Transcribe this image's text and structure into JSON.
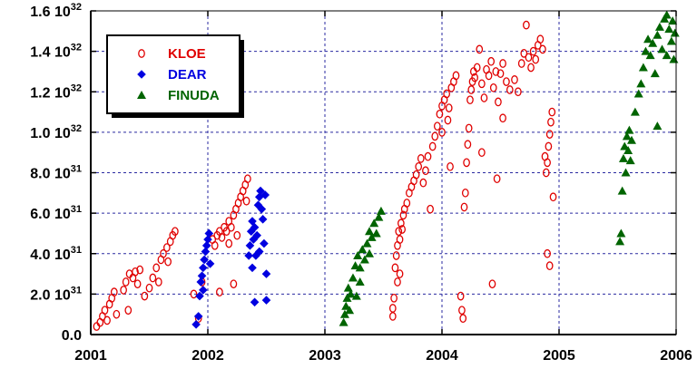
{
  "chart_data": {
    "type": "scatter",
    "title": "",
    "xlabel": "",
    "ylabel": "",
    "xlim": [
      2001,
      2006
    ],
    "ylim": [
      0,
      1.6e+32
    ],
    "grid": "dashed blue",
    "legend_position": "top-left",
    "x_ticks": [
      {
        "value": 2001,
        "label": "2001"
      },
      {
        "value": 2002,
        "label": "2002"
      },
      {
        "value": 2003,
        "label": "2003"
      },
      {
        "value": 2004,
        "label": "2004"
      },
      {
        "value": 2005,
        "label": "2005"
      },
      {
        "value": 2006,
        "label": "2006"
      }
    ],
    "y_ticks": [
      {
        "value": 0,
        "mantissa": "0.0",
        "exp": ""
      },
      {
        "value": 2e+31,
        "mantissa": "2.0 10",
        "exp": "31"
      },
      {
        "value": 4e+31,
        "mantissa": "4.0 10",
        "exp": "31"
      },
      {
        "value": 6e+31,
        "mantissa": "6.0 10",
        "exp": "31"
      },
      {
        "value": 8e+31,
        "mantissa": "8.0 10",
        "exp": "31"
      },
      {
        "value": 1e+32,
        "mantissa": "1.0 10",
        "exp": "32"
      },
      {
        "value": 1.2e+32,
        "mantissa": "1.2 10",
        "exp": "32"
      },
      {
        "value": 1.4e+32,
        "mantissa": "1.4 10",
        "exp": "32"
      },
      {
        "value": 1.6e+32,
        "mantissa": "1.6 10",
        "exp": "32"
      }
    ],
    "series": [
      {
        "name": "KLOE",
        "marker": "open-circle",
        "color": "#e00000",
        "points": [
          [
            2001.05,
            4e+30
          ],
          [
            2001.08,
            6e+30
          ],
          [
            2001.1,
            9e+30
          ],
          [
            2001.12,
            1.2e+31
          ],
          [
            2001.14,
            7e+30
          ],
          [
            2001.16,
            1.5e+31
          ],
          [
            2001.18,
            1.8e+31
          ],
          [
            2001.2,
            2.1e+31
          ],
          [
            2001.22,
            1e+31
          ],
          [
            2001.28,
            2.2e+31
          ],
          [
            2001.3,
            2.6e+31
          ],
          [
            2001.33,
            3e+31
          ],
          [
            2001.36,
            2.8e+31
          ],
          [
            2001.38,
            3.1e+31
          ],
          [
            2001.4,
            2.5e+31
          ],
          [
            2001.42,
            3.2e+31
          ],
          [
            2001.32,
            1.2e+31
          ],
          [
            2001.46,
            1.9e+31
          ],
          [
            2001.5,
            2.3e+31
          ],
          [
            2001.53,
            2.8e+31
          ],
          [
            2001.56,
            3.3e+31
          ],
          [
            2001.6,
            3.7e+31
          ],
          [
            2001.62,
            4e+31
          ],
          [
            2001.65,
            4.3e+31
          ],
          [
            2001.68,
            4.6e+31
          ],
          [
            2001.7,
            4.9e+31
          ],
          [
            2001.72,
            5.1e+31
          ],
          [
            2001.58,
            2.6e+31
          ],
          [
            2001.66,
            3.6e+31
          ],
          [
            2001.88,
            2e+31
          ],
          [
            2001.92,
            8e+30
          ],
          [
            2001.95,
            2.6e+31
          ],
          [
            2002.04,
            4.7e+31
          ],
          [
            2002.06,
            4.4e+31
          ],
          [
            2002.08,
            4.9e+31
          ],
          [
            2002.1,
            5.1e+31
          ],
          [
            2002.12,
            4.8e+31
          ],
          [
            2002.14,
            5.3e+31
          ],
          [
            2002.16,
            5.1e+31
          ],
          [
            2002.18,
            5.6e+31
          ],
          [
            2002.2,
            5.3e+31
          ],
          [
            2002.22,
            5.9e+31
          ],
          [
            2002.24,
            6.2e+31
          ],
          [
            2002.26,
            6.5e+31
          ],
          [
            2002.28,
            6.8e+31
          ],
          [
            2002.3,
            7.1e+31
          ],
          [
            2002.32,
            7.4e+31
          ],
          [
            2002.34,
            7.7e+31
          ],
          [
            2002.33,
            6.6e+31
          ],
          [
            2002.25,
            4.9e+31
          ],
          [
            2002.18,
            4.5e+31
          ],
          [
            2002.22,
            2.5e+31
          ],
          [
            2002.1,
            2.1e+31
          ],
          [
            2003.58,
            1.3e+31
          ],
          [
            2003.59,
            1.8e+31
          ],
          [
            2003.6,
            3.3e+31
          ],
          [
            2003.61,
            3.9e+31
          ],
          [
            2003.62,
            4.4e+31
          ],
          [
            2003.63,
            5.1e+31
          ],
          [
            2003.64,
            4.7e+31
          ],
          [
            2003.65,
            5.5e+31
          ],
          [
            2003.66,
            5.2e+31
          ],
          [
            2003.67,
            5.9e+31
          ],
          [
            2003.68,
            6.2e+31
          ],
          [
            2003.7,
            6.5e+31
          ],
          [
            2003.72,
            7e+31
          ],
          [
            2003.74,
            7.3e+31
          ],
          [
            2003.76,
            7.6e+31
          ],
          [
            2003.78,
            7.9e+31
          ],
          [
            2003.8,
            8.3e+31
          ],
          [
            2003.82,
            8.7e+31
          ],
          [
            2003.84,
            7.5e+31
          ],
          [
            2003.86,
            8.1e+31
          ],
          [
            2003.88,
            8.8e+31
          ],
          [
            2003.9,
            6.2e+31
          ],
          [
            2003.58,
            9e+30
          ],
          [
            2003.62,
            2.6e+31
          ],
          [
            2003.64,
            3e+31
          ],
          [
            2003.92,
            9.3e+31
          ],
          [
            2003.94,
            9.8e+31
          ],
          [
            2003.96,
            1.03e+32
          ],
          [
            2003.98,
            1.09e+32
          ],
          [
            2004.0,
            1.13e+32
          ],
          [
            2004.02,
            1.16e+32
          ],
          [
            2004.04,
            1.19e+32
          ],
          [
            2004.06,
            1.12e+32
          ],
          [
            2004.08,
            1.22e+32
          ],
          [
            2004.1,
            1.25e+32
          ],
          [
            2004.12,
            1.28e+32
          ],
          [
            2004.0,
            1e+32
          ],
          [
            2004.05,
            1.06e+32
          ],
          [
            2004.07,
            8.3e+31
          ],
          [
            2004.16,
            1.9e+31
          ],
          [
            2004.17,
            1.2e+31
          ],
          [
            2004.18,
            8e+30
          ],
          [
            2004.19,
            6.3e+31
          ],
          [
            2004.2,
            7e+31
          ],
          [
            2004.21,
            8.5e+31
          ],
          [
            2004.22,
            9.4e+31
          ],
          [
            2004.23,
            1.02e+32
          ],
          [
            2004.24,
            1.16e+32
          ],
          [
            2004.25,
            1.21e+32
          ],
          [
            2004.26,
            1.25e+32
          ],
          [
            2004.27,
            1.3e+32
          ],
          [
            2004.28,
            1.27e+32
          ],
          [
            2004.3,
            1.32e+32
          ],
          [
            2004.32,
            1.41e+32
          ],
          [
            2004.34,
            1.24e+32
          ],
          [
            2004.36,
            1.17e+32
          ],
          [
            2004.38,
            1.31e+32
          ],
          [
            2004.4,
            1.28e+32
          ],
          [
            2004.42,
            1.35e+32
          ],
          [
            2004.44,
            1.22e+32
          ],
          [
            2004.46,
            1.3e+32
          ],
          [
            2004.48,
            1.15e+32
          ],
          [
            2004.5,
            1.29e+32
          ],
          [
            2004.52,
            1.34e+32
          ],
          [
            2004.34,
            9e+31
          ],
          [
            2004.43,
            2.5e+31
          ],
          [
            2004.47,
            7.7e+31
          ],
          [
            2004.52,
            1.07e+32
          ],
          [
            2004.55,
            1.25e+32
          ],
          [
            2004.58,
            1.21e+32
          ],
          [
            2004.62,
            1.26e+32
          ],
          [
            2004.65,
            1.2e+32
          ],
          [
            2004.68,
            1.34e+32
          ],
          [
            2004.7,
            1.39e+32
          ],
          [
            2004.72,
            1.53e+32
          ],
          [
            2004.74,
            1.37e+32
          ],
          [
            2004.76,
            1.32e+32
          ],
          [
            2004.78,
            1.4e+32
          ],
          [
            2004.8,
            1.36e+32
          ],
          [
            2004.82,
            1.43e+32
          ],
          [
            2004.84,
            1.46e+32
          ],
          [
            2004.86,
            1.41e+32
          ],
          [
            2004.88,
            8.8e+31
          ],
          [
            2004.89,
            8e+31
          ],
          [
            2004.9,
            8.5e+31
          ],
          [
            2004.91,
            9.3e+31
          ],
          [
            2004.92,
            9.9e+31
          ],
          [
            2004.93,
            1.05e+32
          ],
          [
            2004.94,
            1.1e+32
          ],
          [
            2004.95,
            6.8e+31
          ],
          [
            2004.9,
            4e+31
          ],
          [
            2004.92,
            3.4e+31
          ]
        ]
      },
      {
        "name": "DEAR",
        "marker": "diamond",
        "color": "#0000e0",
        "points": [
          [
            2001.9,
            5e+30
          ],
          [
            2001.92,
            9e+30
          ],
          [
            2001.93,
            1.9e+31
          ],
          [
            2001.94,
            2.6e+31
          ],
          [
            2001.95,
            2.9e+31
          ],
          [
            2001.96,
            3.3e+31
          ],
          [
            2001.97,
            3.7e+31
          ],
          [
            2001.98,
            4.1e+31
          ],
          [
            2001.99,
            4.4e+31
          ],
          [
            2002.0,
            4.7e+31
          ],
          [
            2002.01,
            5e+31
          ],
          [
            2002.02,
            3.5e+31
          ],
          [
            2001.96,
            2.2e+31
          ],
          [
            2002.35,
            3.9e+31
          ],
          [
            2002.36,
            4.4e+31
          ],
          [
            2002.37,
            5.1e+31
          ],
          [
            2002.38,
            5.6e+31
          ],
          [
            2002.39,
            4.7e+31
          ],
          [
            2002.4,
            5.3e+31
          ],
          [
            2002.41,
            3.9e+31
          ],
          [
            2002.42,
            4.9e+31
          ],
          [
            2002.43,
            6.4e+31
          ],
          [
            2002.44,
            6.8e+31
          ],
          [
            2002.45,
            7.1e+31
          ],
          [
            2002.46,
            6.2e+31
          ],
          [
            2002.47,
            5.7e+31
          ],
          [
            2002.48,
            4.5e+31
          ],
          [
            2002.49,
            6.9e+31
          ],
          [
            2002.5,
            3e+31
          ],
          [
            2002.4,
            1.6e+31
          ],
          [
            2002.5,
            1.7e+31
          ],
          [
            2002.38,
            3.3e+31
          ],
          [
            2002.44,
            4.1e+31
          ]
        ]
      },
      {
        "name": "FINUDA",
        "marker": "triangle",
        "color": "#006400",
        "points": [
          [
            2003.16,
            6e+30
          ],
          [
            2003.17,
            1e+31
          ],
          [
            2003.18,
            1.4e+31
          ],
          [
            2003.19,
            1.8e+31
          ],
          [
            2003.2,
            2.3e+31
          ],
          [
            2003.21,
            1.2e+31
          ],
          [
            2003.22,
            2e+31
          ],
          [
            2003.24,
            2.8e+31
          ],
          [
            2003.26,
            3.4e+31
          ],
          [
            2003.28,
            3.9e+31
          ],
          [
            2003.3,
            3.3e+31
          ],
          [
            2003.32,
            4.2e+31
          ],
          [
            2003.34,
            3.7e+31
          ],
          [
            2003.36,
            4.5e+31
          ],
          [
            2003.38,
            5.1e+31
          ],
          [
            2003.4,
            4.8e+31
          ],
          [
            2003.42,
            5.5e+31
          ],
          [
            2003.44,
            5e+31
          ],
          [
            2003.46,
            5.8e+31
          ],
          [
            2003.48,
            6.1e+31
          ],
          [
            2003.3,
            2.6e+31
          ],
          [
            2003.38,
            4e+31
          ],
          [
            2003.27,
            1.9e+31
          ],
          [
            2005.52,
            4.6e+31
          ],
          [
            2005.53,
            5e+31
          ],
          [
            2005.54,
            7.1e+31
          ],
          [
            2005.55,
            8.7e+31
          ],
          [
            2005.56,
            9.3e+31
          ],
          [
            2005.57,
            8e+31
          ],
          [
            2005.58,
            9.8e+31
          ],
          [
            2005.59,
            9.1e+31
          ],
          [
            2005.6,
            1.01e+32
          ],
          [
            2005.61,
            8.6e+31
          ],
          [
            2005.62,
            9.6e+31
          ],
          [
            2005.65,
            1.1e+32
          ],
          [
            2005.68,
            1.19e+32
          ],
          [
            2005.7,
            1.24e+32
          ],
          [
            2005.72,
            1.32e+32
          ],
          [
            2005.74,
            1.4e+32
          ],
          [
            2005.76,
            1.46e+32
          ],
          [
            2005.78,
            1.38e+32
          ],
          [
            2005.8,
            1.44e+32
          ],
          [
            2005.82,
            1.29e+32
          ],
          [
            2005.84,
            1.48e+32
          ],
          [
            2005.86,
            1.52e+32
          ],
          [
            2005.88,
            1.41e+32
          ],
          [
            2005.9,
            1.56e+32
          ],
          [
            2005.92,
            1.58e+32
          ],
          [
            2005.94,
            1.51e+32
          ],
          [
            2005.96,
            1.45e+32
          ],
          [
            2005.98,
            1.36e+32
          ],
          [
            2005.99,
            1.49e+32
          ],
          [
            2005.84,
            1.03e+32
          ],
          [
            2005.92,
            1.38e+32
          ],
          [
            2005.97,
            1.55e+32
          ]
        ]
      }
    ]
  },
  "colors": {
    "grid": "#2a2aa0",
    "axis": "#000000",
    "legend_shadow": "#000000"
  }
}
